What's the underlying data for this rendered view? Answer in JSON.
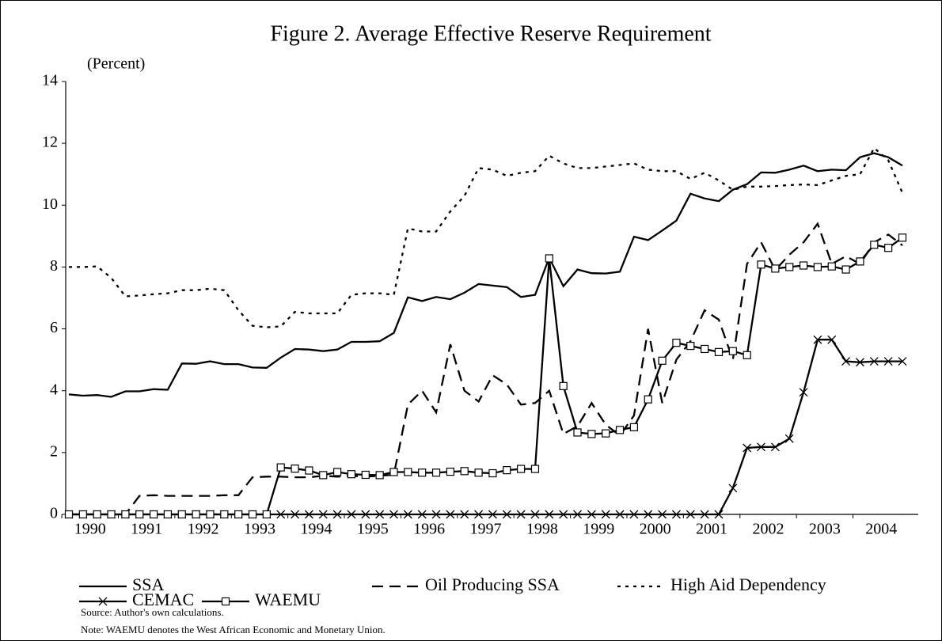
{
  "chart_data": {
    "type": "line",
    "title": "Figure 2. Average Effective Reserve Requirement",
    "y_label": "(Percent)",
    "source": "Source: Author's own calculations.",
    "note": "Note: WAEMU denotes the West African Economic and Monetary Union.",
    "categories": [
      "1990",
      null,
      null,
      null,
      "1991",
      null,
      null,
      null,
      "1992",
      null,
      null,
      null,
      "1993",
      null,
      null,
      null,
      "1994",
      null,
      null,
      null,
      "1995",
      null,
      null,
      null,
      "1996",
      null,
      null,
      null,
      "1997",
      null,
      null,
      null,
      "1998",
      null,
      null,
      null,
      "1999",
      null,
      null,
      null,
      "2000",
      null,
      null,
      null,
      "2001",
      null,
      null,
      null,
      "2002",
      null,
      null,
      null,
      "2003",
      null,
      null,
      null,
      "2004",
      null,
      null,
      null
    ],
    "ylim": [
      0,
      14
    ],
    "yticks": [
      0,
      2,
      4,
      6,
      8,
      10,
      12,
      14
    ],
    "series": [
      {
        "name": "SSA",
        "color": "#000000",
        "dash": "solid",
        "marker": "none",
        "values": [
          3.88,
          3.84,
          3.86,
          3.8,
          3.98,
          3.98,
          4.05,
          4.03,
          4.88,
          4.87,
          4.95,
          4.86,
          4.86,
          4.75,
          4.74,
          5.07,
          5.35,
          5.33,
          5.28,
          5.33,
          5.58,
          5.58,
          5.6,
          5.87,
          7.02,
          6.9,
          7.03,
          6.96,
          7.17,
          7.45,
          7.4,
          7.35,
          7.03,
          7.1,
          8.3,
          7.38,
          7.92,
          7.8,
          7.79,
          7.85,
          8.98,
          8.87,
          9.18,
          9.5,
          10.37,
          10.22,
          10.13,
          10.5,
          10.68,
          11.06,
          11.05,
          11.15,
          11.28,
          11.1,
          11.15,
          11.13,
          11.55,
          11.68,
          11.55,
          11.28
        ]
      },
      {
        "name": "Oil Producing SSA",
        "color": "#000000",
        "dash": "dashed",
        "marker": "none",
        "values": [
          0,
          0,
          0,
          0,
          0,
          0.6,
          0.62,
          0.6,
          0.6,
          0.6,
          0.6,
          0.62,
          0.62,
          1.2,
          1.22,
          1.22,
          1.2,
          1.2,
          1.25,
          1.22,
          1.25,
          1.22,
          1.25,
          1.28,
          3.55,
          4.0,
          3.3,
          5.5,
          4.0,
          3.65,
          4.5,
          4.2,
          3.55,
          3.6,
          4.0,
          2.6,
          2.85,
          3.6,
          2.9,
          2.55,
          3.2,
          6.0,
          3.6,
          5.0,
          5.6,
          6.6,
          6.3,
          5.0,
          8.1,
          8.8,
          7.9,
          8.4,
          8.8,
          9.4,
          8.1,
          8.35,
          8.1,
          8.8,
          9.05,
          8.7
        ]
      },
      {
        "name": "High Aid Dependency",
        "color": "#000000",
        "dash": "dotted",
        "marker": "none",
        "values": [
          8.0,
          8.0,
          8.02,
          7.65,
          7.05,
          7.08,
          7.12,
          7.15,
          7.25,
          7.25,
          7.3,
          7.25,
          6.6,
          6.1,
          6.05,
          6.08,
          6.55,
          6.5,
          6.5,
          6.5,
          7.1,
          7.15,
          7.15,
          7.1,
          9.25,
          9.15,
          9.15,
          9.8,
          10.3,
          11.2,
          11.15,
          10.95,
          11.05,
          11.1,
          11.6,
          11.35,
          11.2,
          11.2,
          11.25,
          11.3,
          11.35,
          11.15,
          11.1,
          11.1,
          10.85,
          11.05,
          10.8,
          10.5,
          10.6,
          10.6,
          10.62,
          10.65,
          10.67,
          10.65,
          10.8,
          10.95,
          11.0,
          11.85,
          11.45,
          10.4
        ]
      },
      {
        "name": "CEMAC",
        "color": "#000000",
        "dash": "solid",
        "marker": "x",
        "values": [
          0,
          0,
          0,
          0,
          0,
          0,
          0,
          0,
          0,
          0,
          0,
          0,
          0,
          0,
          0,
          0,
          0,
          0,
          0,
          0,
          0,
          0,
          0,
          0,
          0,
          0,
          0,
          0,
          0,
          0,
          0,
          0,
          0,
          0,
          0,
          0,
          0,
          0,
          0,
          0,
          0,
          0,
          0,
          0,
          0,
          0,
          0,
          0.85,
          2.15,
          2.18,
          2.18,
          2.45,
          3.95,
          5.65,
          5.65,
          4.95,
          4.92,
          4.95,
          4.95,
          4.95
        ]
      },
      {
        "name": "WAEMU",
        "color": "#000000",
        "dash": "solid",
        "marker": "square",
        "values": [
          0,
          0,
          0,
          0,
          0,
          0,
          0,
          0,
          0,
          0,
          0,
          0,
          0,
          0,
          0,
          1.52,
          1.48,
          1.42,
          1.27,
          1.37,
          1.3,
          1.28,
          1.27,
          1.37,
          1.37,
          1.35,
          1.35,
          1.38,
          1.4,
          1.35,
          1.33,
          1.43,
          1.47,
          1.47,
          8.28,
          4.15,
          2.65,
          2.6,
          2.62,
          2.73,
          2.82,
          3.72,
          4.97,
          5.55,
          5.45,
          5.35,
          5.25,
          5.28,
          5.15,
          8.08,
          7.95,
          8.0,
          8.05,
          8.0,
          8.02,
          7.92,
          8.18,
          8.72,
          8.62,
          8.95
        ]
      }
    ]
  }
}
